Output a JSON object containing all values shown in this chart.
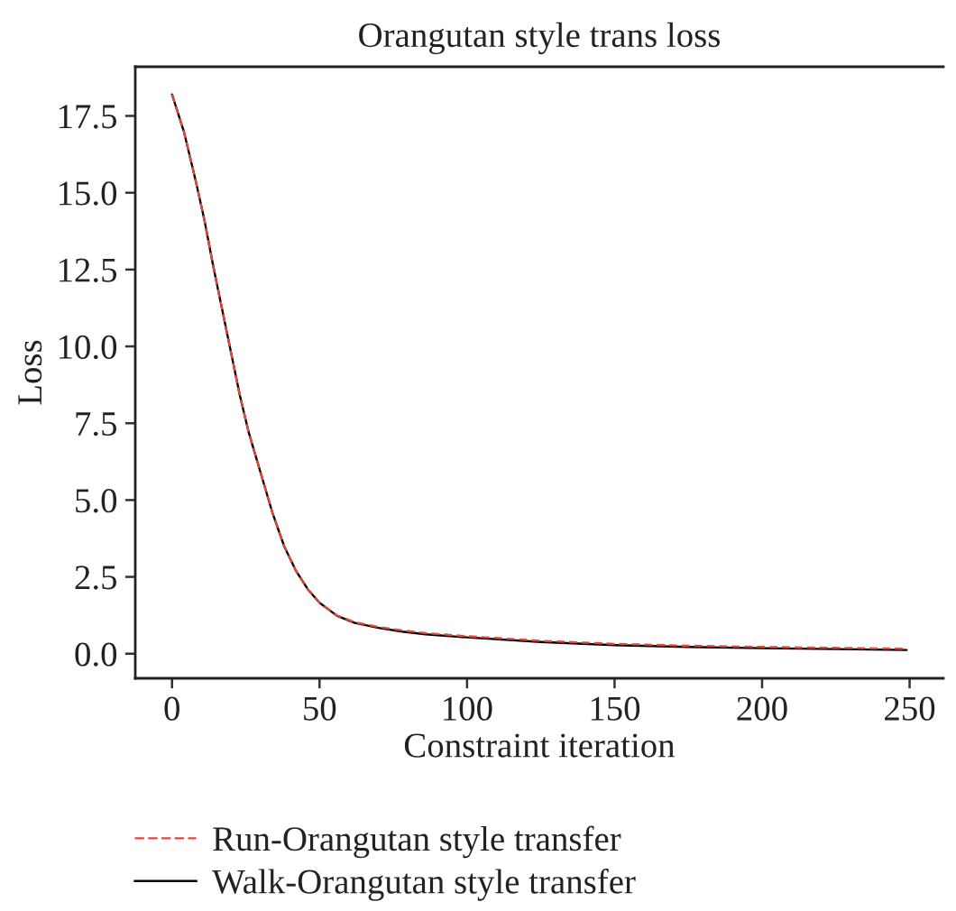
{
  "chart_data": {
    "type": "line",
    "title": "Orangutan style trans loss",
    "xlabel": "Constraint iteration",
    "ylabel": "Loss",
    "xlim": [
      -12.45,
      261.45
    ],
    "ylim": [
      -0.8,
      19.1
    ],
    "xticks": [
      0,
      50,
      100,
      150,
      200,
      250
    ],
    "yticks": [
      {
        "value": 0,
        "label": "0.0"
      },
      {
        "value": 2.5,
        "label": "2.5"
      },
      {
        "value": 5,
        "label": "5.0"
      },
      {
        "value": 7.5,
        "label": "7.5"
      },
      {
        "value": 10,
        "label": "10.0"
      },
      {
        "value": 12.5,
        "label": "12.5"
      },
      {
        "value": 15,
        "label": "15.0"
      },
      {
        "value": 17.5,
        "label": "17.5"
      }
    ],
    "x": [
      0,
      4,
      8,
      11,
      14,
      17,
      20,
      23,
      26,
      30,
      34,
      38,
      42,
      46,
      50,
      56,
      62,
      70,
      78,
      86,
      100,
      125,
      150,
      175,
      200,
      225,
      249
    ],
    "series": [
      {
        "name": "Run-Orangutan style transfer",
        "color": "#e0483a",
        "line_style": "dashed",
        "values": [
          18.2,
          17.0,
          15.4,
          14.1,
          12.6,
          11.2,
          9.8,
          8.4,
          7.2,
          5.9,
          4.6,
          3.5,
          2.7,
          2.1,
          1.66,
          1.24,
          1.02,
          0.87,
          0.76,
          0.67,
          0.57,
          0.42,
          0.32,
          0.26,
          0.22,
          0.19,
          0.16
        ]
      },
      {
        "name": "Walk-Orangutan style transfer",
        "color": "#000000",
        "line_style": "solid",
        "values": [
          18.2,
          17.0,
          15.4,
          14.1,
          12.6,
          11.2,
          9.8,
          8.4,
          7.2,
          5.9,
          4.6,
          3.5,
          2.7,
          2.1,
          1.66,
          1.23,
          1.0,
          0.84,
          0.72,
          0.63,
          0.53,
          0.38,
          0.28,
          0.22,
          0.18,
          0.15,
          0.12
        ]
      }
    ],
    "legend": "bottom",
    "grid": false,
    "marker": "none"
  }
}
